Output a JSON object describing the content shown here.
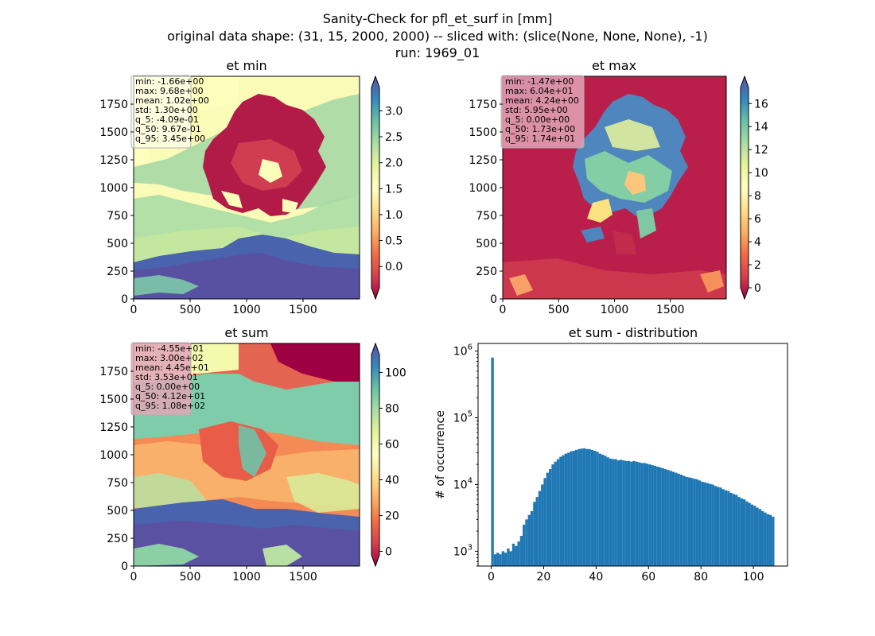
{
  "figure": {
    "title_lines": [
      "Sanity-Check for pfl_et_surf in [mm]",
      "original data shape: (31, 15, 2000, 2000) -- sliced with: (slice(None, None, None), -1)",
      "run: 1969_01"
    ]
  },
  "colormap": "Spectral",
  "chart_data": [
    {
      "type": "heatmap",
      "title": "et min",
      "xticks": [
        0,
        500,
        1000,
        1500
      ],
      "yticks": [
        0,
        250,
        500,
        750,
        1000,
        1250,
        1500,
        1750
      ],
      "xlim": [
        0,
        2000
      ],
      "ylim": [
        0,
        2000
      ],
      "colorbar": {
        "ticks": [
          "0.0",
          "0.5",
          "1.0",
          "1.5",
          "2.0",
          "2.5",
          "3.0"
        ],
        "tick_values": [
          0,
          0.5,
          1,
          1.5,
          2,
          2.5,
          3
        ],
        "range": [
          -0.41,
          3.45
        ],
        "extend": "both"
      },
      "stats_box_color": "#ffffff",
      "stats": [
        "min: -1.66e+00",
        "max: 9.68e+00",
        "mean: 1.02e+00",
        "std: 1.30e+00",
        "q_5: -4.09e-01",
        "q_50: 9.67e-01",
        "q_95: 3.45e+00"
      ]
    },
    {
      "type": "heatmap",
      "title": "et max",
      "xticks": [
        0,
        500,
        1000,
        1500
      ],
      "yticks": [
        0,
        250,
        500,
        750,
        1000,
        1250,
        1500,
        1750
      ],
      "xlim": [
        0,
        2000
      ],
      "ylim": [
        0,
        2000
      ],
      "colorbar": {
        "ticks": [
          "0",
          "2",
          "4",
          "6",
          "8",
          "10",
          "12",
          "14",
          "16"
        ],
        "tick_values": [
          0,
          2,
          4,
          6,
          8,
          10,
          12,
          14,
          16
        ],
        "range": [
          0,
          17.4
        ],
        "extend": "both"
      },
      "stats_box_color": "#e2a6b8",
      "stats": [
        "min: -1.47e+00",
        "max: 6.04e+01",
        "mean: 4.24e+00",
        "std: 5.95e+00",
        "q_5: 0.00e+00",
        "q_50: 1.73e+00",
        "q_95: 1.74e+01"
      ]
    },
    {
      "type": "heatmap",
      "title": "et sum",
      "xticks": [
        0,
        500,
        1000,
        1500
      ],
      "yticks": [
        0,
        250,
        500,
        750,
        1000,
        1250,
        1500,
        1750
      ],
      "xlim": [
        0,
        2000
      ],
      "ylim": [
        0,
        2000
      ],
      "colorbar": {
        "ticks": [
          "0",
          "20",
          "40",
          "60",
          "80",
          "100"
        ],
        "tick_values": [
          0,
          20,
          40,
          60,
          80,
          100
        ],
        "range": [
          -2,
          110
        ],
        "extend": "both"
      },
      "stats_box_color": "#e2a6b8",
      "stats": [
        "min: -4.55e+01",
        "max: 3.00e+02",
        "mean: 4.45e+01",
        "std: 3.53e+01",
        "q_5: 0.00e+00",
        "q_50: 4.12e+01",
        "q_95: 1.08e+02"
      ]
    },
    {
      "type": "bar",
      "title": "et sum - distribution",
      "ylabel": "# of occurrence",
      "yscale": "log",
      "xlim": [
        -5,
        113
      ],
      "ylim": [
        600,
        1300000
      ],
      "xticks": [
        "0",
        "20",
        "40",
        "60",
        "80",
        "100"
      ],
      "xtick_values": [
        0,
        20,
        40,
        60,
        80,
        100
      ],
      "yticks": [
        "10^3",
        "10^4",
        "10^5",
        "10^6"
      ],
      "ytick_values": [
        1000,
        10000,
        100000,
        1000000
      ],
      "bar_color": "#1f77b4",
      "bins": [
        [
          0,
          800000
        ],
        [
          1,
          900
        ],
        [
          2,
          950
        ],
        [
          3,
          900
        ],
        [
          4,
          1000
        ],
        [
          5,
          950
        ],
        [
          6,
          1100
        ],
        [
          7,
          1000
        ],
        [
          8,
          1300
        ],
        [
          9,
          1200
        ],
        [
          10,
          1400
        ],
        [
          11,
          1700
        ],
        [
          12,
          2500
        ],
        [
          13,
          3000
        ],
        [
          14,
          3500
        ],
        [
          15,
          4000
        ],
        [
          16,
          5500
        ],
        [
          17,
          6500
        ],
        [
          18,
          8000
        ],
        [
          19,
          10000
        ],
        [
          20,
          12500
        ],
        [
          21,
          15000
        ],
        [
          22,
          17000
        ],
        [
          23,
          20000
        ],
        [
          24,
          22000
        ],
        [
          25,
          24000
        ],
        [
          26,
          26000
        ],
        [
          27,
          27500
        ],
        [
          28,
          29000
        ],
        [
          29,
          30000
        ],
        [
          30,
          31500
        ],
        [
          31,
          32000
        ],
        [
          32,
          33000
        ],
        [
          33,
          34000
        ],
        [
          34,
          34500
        ],
        [
          35,
          35000
        ],
        [
          36,
          34000
        ],
        [
          37,
          34000
        ],
        [
          38,
          33000
        ],
        [
          39,
          32000
        ],
        [
          40,
          31000
        ],
        [
          41,
          29000
        ],
        [
          42,
          28000
        ],
        [
          43,
          27000
        ],
        [
          44,
          25500
        ],
        [
          45,
          24500
        ],
        [
          46,
          24000
        ],
        [
          47,
          24000
        ],
        [
          48,
          23000
        ],
        [
          49,
          23500
        ],
        [
          50,
          23000
        ],
        [
          51,
          22500
        ],
        [
          52,
          22500
        ],
        [
          53,
          22000
        ],
        [
          54,
          22500
        ],
        [
          55,
          22000
        ],
        [
          56,
          21500
        ],
        [
          57,
          21000
        ],
        [
          58,
          21000
        ],
        [
          59,
          20500
        ],
        [
          60,
          20000
        ],
        [
          61,
          19500
        ],
        [
          62,
          19000
        ],
        [
          63,
          18500
        ],
        [
          64,
          18000
        ],
        [
          65,
          17500
        ],
        [
          66,
          17000
        ],
        [
          67,
          16500
        ],
        [
          68,
          16000
        ],
        [
          69,
          15500
        ],
        [
          70,
          15000
        ],
        [
          71,
          14500
        ],
        [
          72,
          14000
        ],
        [
          73,
          13500
        ],
        [
          74,
          13000
        ],
        [
          75,
          12800
        ],
        [
          76,
          12500
        ],
        [
          77,
          12200
        ],
        [
          78,
          12000
        ],
        [
          79,
          11500
        ],
        [
          80,
          11000
        ],
        [
          81,
          10800
        ],
        [
          82,
          10500
        ],
        [
          83,
          10200
        ],
        [
          84,
          10000
        ],
        [
          85,
          9500
        ],
        [
          86,
          9200
        ],
        [
          87,
          9000
        ],
        [
          88,
          8500
        ],
        [
          89,
          8200
        ],
        [
          90,
          8000
        ],
        [
          91,
          7500
        ],
        [
          92,
          7200
        ],
        [
          93,
          7000
        ],
        [
          94,
          6500
        ],
        [
          95,
          6200
        ],
        [
          96,
          6000
        ],
        [
          97,
          5600
        ],
        [
          98,
          5300
        ],
        [
          99,
          5000
        ],
        [
          100,
          4800
        ],
        [
          101,
          4500
        ],
        [
          102,
          4300
        ],
        [
          103,
          4000
        ],
        [
          104,
          3800
        ],
        [
          105,
          3600
        ],
        [
          106,
          3500
        ],
        [
          107,
          3300
        ]
      ]
    }
  ]
}
